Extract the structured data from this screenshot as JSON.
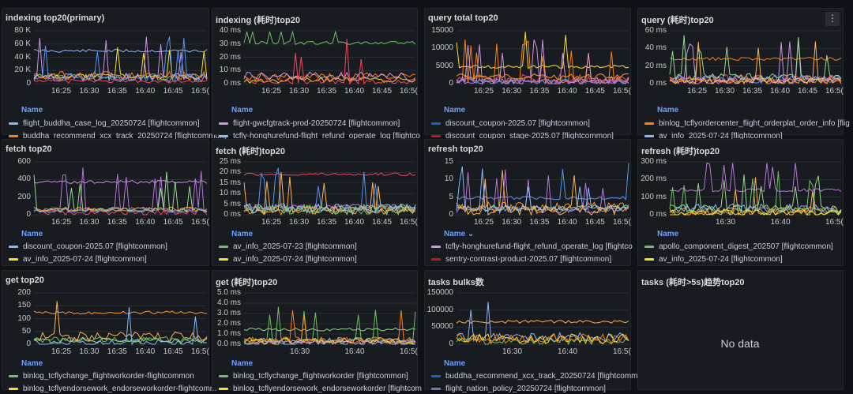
{
  "panels": [
    {
      "title": "indexing top20(primary)",
      "yticks": [
        "80 K",
        "60 K",
        "40 K",
        "20 K",
        "0"
      ],
      "xticks": [
        "16:25",
        "16:30",
        "16:35",
        "16:40",
        "16:45",
        "16:5("
      ],
      "legend_header": "Name",
      "legend": [
        {
          "label": "flight_buddha_case_log_20250724 [flightcommon]",
          "color": "#8ab8ff"
        },
        {
          "label": "buddha_recommend_xcx_track_20250724 [flightcommon]",
          "color": "#ff7f11"
        }
      ]
    },
    {
      "title": "indexing (耗时)top20",
      "yticks": [
        "40 ms",
        "30 ms",
        "20 ms",
        "10 ms",
        "0 ms"
      ],
      "xticks": [
        "16:25",
        "16:30",
        "16:35",
        "16:40",
        "16:45",
        "16:5("
      ],
      "legend_header": "Name",
      "legend": [
        {
          "label": "flight-gwcfgtrack-prod-20250724 [flightcommon]",
          "color": "#ca95e5"
        },
        {
          "label": "tcfly-honghurefund-flight_refund_operate_log [flightco",
          "color": "#8ab8ff"
        }
      ]
    },
    {
      "title": "query total top20",
      "yticks": [
        "15000",
        "10000",
        "5000",
        "0"
      ],
      "xticks": [
        "16:25",
        "16:30",
        "16:35",
        "16:40",
        "16:45",
        "16:5("
      ],
      "legend_header": "Name",
      "legend": [
        {
          "label": "discount_coupon-2025.07 [flightcommon]",
          "color": "#1f60c4"
        },
        {
          "label": "discount_coupon_stage-2025.07 [flightcommon]",
          "color": "#c4162a"
        }
      ]
    },
    {
      "title": "query (耗时)top20",
      "yticks": [
        "60 ms",
        "40 ms",
        "20 ms",
        "0 ms"
      ],
      "xticks": [
        "16:25",
        "16:30",
        "16:35",
        "16:40",
        "16:45",
        "16:5("
      ],
      "menu": "⋮",
      "legend_header": "Name",
      "legend": [
        {
          "label": "binlog_tcflyordercenter_flight_orderplat_order_info [flig",
          "color": "#ff7f11"
        },
        {
          "label": "av_info_2025-07-24 [flightcommon]",
          "color": "#8ab8ff"
        }
      ]
    },
    {
      "title": "fetch top20",
      "yticks": [
        "600",
        "400",
        "200",
        "0"
      ],
      "xticks": [
        "16:25",
        "16:30",
        "16:35",
        "16:40",
        "16:45",
        "16:5("
      ],
      "legend_header": "Name",
      "legend": [
        {
          "label": "discount_coupon-2025.07 [flightcommon]",
          "color": "#8ab8ff"
        },
        {
          "label": "av_info_2025-07-24 [flightcommon]",
          "color": "#fade2a"
        }
      ]
    },
    {
      "title": "fetch (耗时)top20",
      "yticks": [
        "25 ms",
        "20 ms",
        "15 ms",
        "10 ms",
        "5 ms",
        "0 ms"
      ],
      "xticks": [
        "16:25",
        "16:30",
        "16:35",
        "16:40",
        "16:45",
        "16:5("
      ],
      "legend_header": "Name",
      "legend": [
        {
          "label": "av_info_2025-07-23 [flightcommon]",
          "color": "#73bf69"
        },
        {
          "label": "av_info_2025-07-24 [flightcommon]",
          "color": "#fade2a"
        }
      ]
    },
    {
      "title": "refresh top20",
      "yticks": [
        "15",
        "10",
        "5",
        "0"
      ],
      "xticks": [
        "16:25",
        "16:30",
        "16:35",
        "16:40",
        "16:45",
        "16:5("
      ],
      "legend_header": "Name ⌄",
      "legend": [
        {
          "label": "tcfly-honghurefund-flight_refund_operate_log [flightco",
          "color": "#ca95e5"
        },
        {
          "label": "sentry-contrast-product-2025.07 [flightcommon]",
          "color": "#c4162a"
        }
      ]
    },
    {
      "title": "refresh (耗时)top20",
      "yticks": [
        "300 ms",
        "200 ms",
        "100 ms",
        "0 ms"
      ],
      "xticks": [
        "16:30",
        "16:40",
        "16:5("
      ],
      "legend_header": "Name",
      "legend": [
        {
          "label": "apollo_component_digest_202507 [flightcommon]",
          "color": "#73bf69"
        },
        {
          "label": "av_info_2025-07-24 [flightcommon]",
          "color": "#fade2a"
        }
      ]
    },
    {
      "title": "get top20",
      "yticks": [
        "200",
        "150",
        "100",
        "50",
        "0"
      ],
      "xticks": [
        "16:25",
        "16:30",
        "16:35",
        "16:40",
        "16:45",
        "16:5("
      ],
      "legend_header": "Name",
      "legend": [
        {
          "label": "binlog_tcflychange_flightworkorder-flightcommon",
          "color": "#73bf69"
        },
        {
          "label": "binlog_tcflyendorsework_endorseworkorder-flightcomm",
          "color": "#fade2a"
        }
      ]
    },
    {
      "title": "get (耗时)top20",
      "yticks": [
        "5.0 ms",
        "4.0 ms",
        "3.0 ms",
        "2.0 ms",
        "1.0 ms",
        "0.0 ms"
      ],
      "xticks": [
        "16:30",
        "16:40",
        "16:5("
      ],
      "legend_header": "Name",
      "legend": [
        {
          "label": "binlog_tcflychange_flightworkorder [flightcommon]",
          "color": "#73bf69"
        },
        {
          "label": "binlog_tcflyendorsework_endorseworkorder [flightcom",
          "color": "#fade2a"
        }
      ]
    },
    {
      "title": "tasks bulks数",
      "yticks": [
        "150000",
        "100000",
        "50000",
        "0"
      ],
      "xticks": [
        "16:30",
        "16:40",
        "16:5("
      ],
      "legend_header": "Name",
      "legend": [
        {
          "label": "buddha_recommend_xcx_track_20250724 [flightcommon",
          "color": "#1f60c4"
        },
        {
          "label": "flight_nation_policy_20250724 [flightcommon]",
          "color": "#806eb7"
        }
      ]
    },
    {
      "title": "tasks (耗时>5s)趋势top20",
      "nodata": "No data"
    }
  ]
}
